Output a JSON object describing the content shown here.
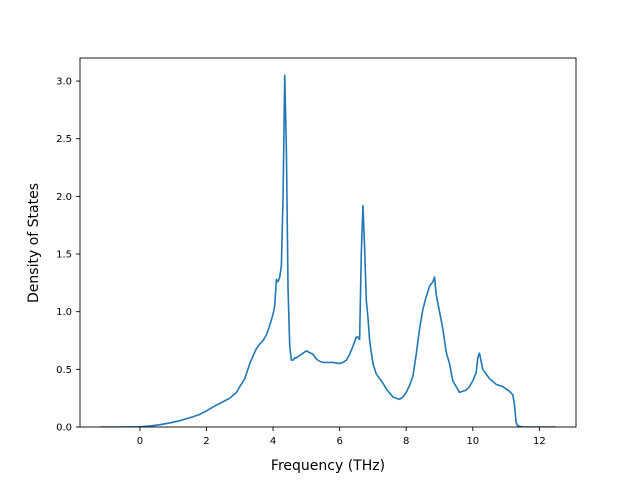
{
  "chart_data": {
    "type": "line",
    "title": "",
    "xlabel": "Frequency (THz)",
    "ylabel": "Density of States",
    "xlim": [
      -1.8,
      13.1
    ],
    "ylim": [
      0.0,
      3.2
    ],
    "xticks": [
      0,
      2,
      4,
      6,
      8,
      10,
      12
    ],
    "yticks": [
      0.0,
      0.5,
      1.0,
      1.5,
      2.0,
      2.5,
      3.0
    ],
    "xtick_labels": [
      "0",
      "2",
      "4",
      "6",
      "8",
      "10",
      "12"
    ],
    "ytick_labels": [
      "0.0",
      "0.5",
      "1.0",
      "1.5",
      "2.0",
      "2.5",
      "3.0"
    ],
    "grid": false,
    "series_color": "#1f77b4",
    "series": [
      {
        "x": [
          -1.2,
          -0.5,
          0.0,
          0.3,
          0.6,
          0.9,
          1.2,
          1.5,
          1.8,
          2.0,
          2.3,
          2.5,
          2.7,
          2.9,
          3.0,
          3.15,
          3.3,
          3.45,
          3.5,
          3.55,
          3.6,
          3.7,
          3.8,
          3.9,
          4.0,
          4.05,
          4.1,
          4.15,
          4.2,
          4.25,
          4.3,
          4.35,
          4.4,
          4.45,
          4.5,
          4.55,
          4.6,
          4.65,
          4.7,
          4.8,
          4.9,
          5.0,
          5.2,
          5.3,
          5.35,
          5.4,
          5.5,
          5.6,
          5.8,
          6.0,
          6.1,
          6.2,
          6.3,
          6.4,
          6.5,
          6.55,
          6.6,
          6.65,
          6.7,
          6.75,
          6.8,
          6.85,
          6.9,
          7.0,
          7.1,
          7.2,
          7.3,
          7.4,
          7.6,
          7.8,
          7.9,
          8.0,
          8.1,
          8.2,
          8.3,
          8.4,
          8.5,
          8.6,
          8.7,
          8.8,
          8.85,
          8.9,
          9.0,
          9.1,
          9.2,
          9.3,
          9.4,
          9.5,
          9.6,
          9.8,
          9.9,
          10.0,
          10.1,
          10.15,
          10.2,
          10.3,
          10.5,
          10.7,
          10.9,
          11.0,
          11.1,
          11.2,
          11.25,
          11.3,
          11.35,
          11.5,
          12.0,
          12.5
        ],
        "y": [
          0.0,
          0.0,
          0.002,
          0.008,
          0.02,
          0.035,
          0.055,
          0.08,
          0.11,
          0.14,
          0.19,
          0.22,
          0.25,
          0.3,
          0.35,
          0.42,
          0.55,
          0.65,
          0.68,
          0.7,
          0.72,
          0.75,
          0.8,
          0.88,
          0.98,
          1.05,
          1.28,
          1.26,
          1.3,
          1.4,
          2.0,
          3.05,
          2.4,
          1.2,
          0.7,
          0.58,
          0.58,
          0.6,
          0.6,
          0.62,
          0.64,
          0.66,
          0.63,
          0.59,
          0.58,
          0.57,
          0.56,
          0.56,
          0.56,
          0.55,
          0.56,
          0.58,
          0.63,
          0.7,
          0.78,
          0.78,
          0.76,
          1.5,
          1.92,
          1.55,
          1.1,
          0.95,
          0.75,
          0.55,
          0.46,
          0.42,
          0.38,
          0.33,
          0.26,
          0.24,
          0.26,
          0.3,
          0.36,
          0.44,
          0.63,
          0.85,
          1.02,
          1.13,
          1.22,
          1.26,
          1.3,
          1.15,
          1.0,
          0.85,
          0.65,
          0.55,
          0.4,
          0.35,
          0.3,
          0.32,
          0.35,
          0.4,
          0.47,
          0.6,
          0.64,
          0.5,
          0.42,
          0.37,
          0.35,
          0.33,
          0.31,
          0.28,
          0.2,
          0.04,
          0.01,
          0.0,
          0.0,
          0.0
        ]
      }
    ]
  }
}
